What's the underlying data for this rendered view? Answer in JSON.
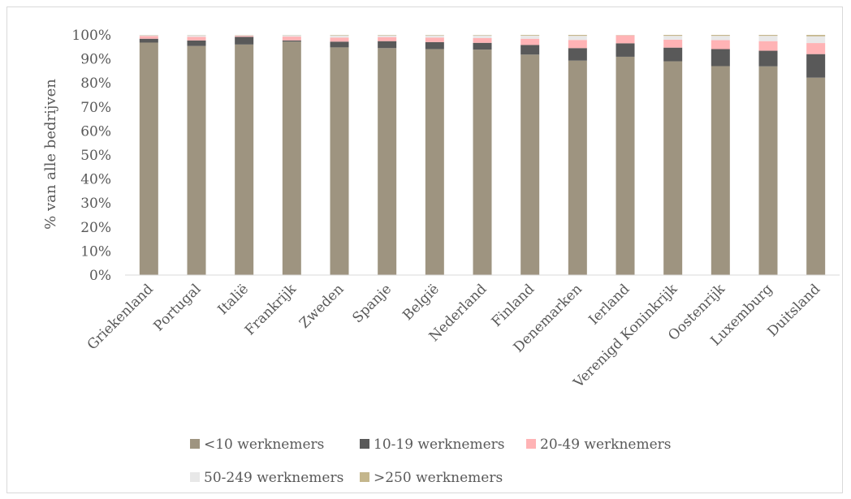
{
  "chart_data": {
    "type": "bar",
    "stacked": true,
    "ylabel": "% van alle bedrijven",
    "xlabel": "",
    "ylim": [
      0,
      100
    ],
    "yticks": [
      "0%",
      "10%",
      "20%",
      "30%",
      "40%",
      "50%",
      "60%",
      "70%",
      "80%",
      "90%",
      "100%"
    ],
    "grid": false,
    "legend_position": "bottom",
    "categories": [
      "Griekenland",
      "Portugal",
      "Italië",
      "Frankrijk",
      "Zweden",
      "Spanje",
      "België",
      "Nederland",
      "Finland",
      "Denemarken",
      "Ierland",
      "Verenigd Koninkrijk",
      "Oostenrijk",
      "Luxemburg",
      "Duitsland"
    ],
    "series": [
      {
        "name": "<10 werknemers",
        "color": "#9e9480",
        "values": [
          96.8,
          95.4,
          96.0,
          97.2,
          94.8,
          94.5,
          94.1,
          93.9,
          91.8,
          89.3,
          90.9,
          89.0,
          87.0,
          86.9,
          82.2
        ]
      },
      {
        "name": "10-19 werknemers",
        "color": "#595959",
        "values": [
          1.6,
          2.3,
          3.2,
          0.5,
          2.4,
          2.9,
          2.9,
          2.8,
          4.0,
          5.2,
          5.6,
          5.7,
          7.1,
          6.5,
          9.8
        ]
      },
      {
        "name": "20-49 werknemers",
        "color": "#ffb3b5",
        "values": [
          1.1,
          1.5,
          0.4,
          1.6,
          1.7,
          1.7,
          1.9,
          2.0,
          2.6,
          3.4,
          3.3,
          3.3,
          3.7,
          4.0,
          4.6
        ]
      },
      {
        "name": "50-249 werknemers",
        "color": "#e8e8e8",
        "values": [
          0.4,
          0.7,
          0.3,
          0.6,
          0.9,
          0.7,
          0.9,
          1.1,
          1.3,
          1.7,
          0.1,
          1.6,
          1.8,
          2.2,
          2.8
        ]
      },
      {
        "name": ">250 werknemers",
        "color": "#c4b68c",
        "values": [
          0.1,
          0.1,
          0.1,
          0.1,
          0.2,
          0.2,
          0.2,
          0.2,
          0.3,
          0.4,
          0.1,
          0.4,
          0.4,
          0.4,
          0.6
        ]
      }
    ]
  }
}
